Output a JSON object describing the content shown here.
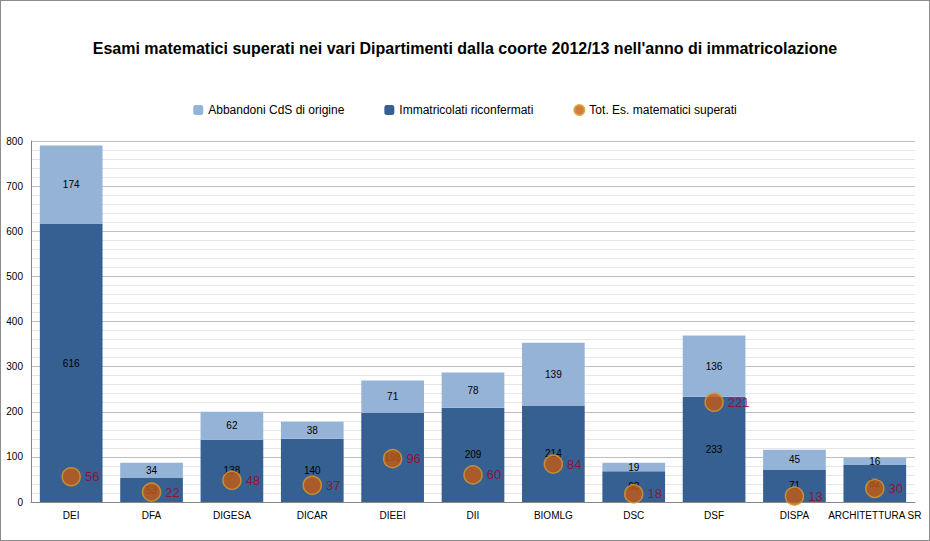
{
  "chart_data": {
    "type": "bar",
    "title": "Esami matematici superati nei vari Dipartimenti dalla coorte 2012/13 nell'anno di immatricolazione",
    "categories": [
      "DEI",
      "DFA",
      "DIGESA",
      "DICAR",
      "DIEEI",
      "DII",
      "BIOMLG",
      "DSC",
      "DSF",
      "DISPA",
      "ARCHITETTURA SR"
    ],
    "series": [
      {
        "name": "Abbandoni CdS di origine",
        "type": "bar",
        "color": "#95b3d7",
        "values": [
          174,
          34,
          62,
          38,
          71,
          78,
          139,
          19,
          136,
          45,
          16
        ]
      },
      {
        "name": "Immatricolati riconfermati",
        "type": "bar",
        "color": "#376092",
        "values": [
          616,
          53,
          138,
          140,
          198,
          209,
          214,
          68,
          233,
          71,
          82
        ]
      },
      {
        "name": "Tot. Es. matematici superati",
        "type": "scatter",
        "marker": "circle",
        "color": "#c55a11",
        "values": [
          56,
          22,
          48,
          37,
          96,
          60,
          84,
          18,
          221,
          13,
          30
        ]
      }
    ],
    "stacked": true,
    "data_labels": true,
    "ylim": [
      0,
      800
    ],
    "yticks": [
      0,
      100,
      200,
      300,
      400,
      500,
      600,
      700,
      800
    ],
    "grid": true,
    "legend": "top"
  }
}
